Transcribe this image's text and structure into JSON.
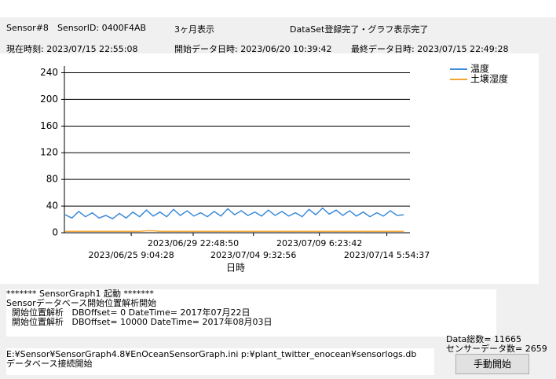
{
  "header": {
    "row1": [
      "Sensor#8",
      "SensorID: 0400F4AB",
      "3ヶ月表示",
      "DataSet登録完了・グラフ表示完了"
    ],
    "row2": [
      "現在時刻: 2023/07/15 22:55:08",
      "開始データ日時: 2023/06/20 10:39:42",
      "最終データ日時: 2023/07/15 22:49:28"
    ]
  },
  "chart_data": {
    "type": "line",
    "x_label": "日時",
    "grid": true,
    "legend": "top-right",
    "xlim": [
      "2023/06/20 10:39:42",
      "2023/07/15 22:49:28"
    ],
    "xticks": [
      "2023/06/25 9:04:28",
      "2023/06/29 22:48:50",
      "2023/07/04 9:32:56",
      "2023/07/09 6:23:42",
      "2023/07/14 5:54:37"
    ],
    "ylim": [
      0,
      250
    ],
    "yticks": [
      0,
      40,
      80,
      120,
      160,
      200,
      240
    ],
    "x": [
      "2023/06/20 12:00:00",
      "2023/06/21 0:00:00",
      "2023/06/21 12:00:00",
      "2023/06/22 0:00:00",
      "2023/06/22 12:00:00",
      "2023/06/23 0:00:00",
      "2023/06/23 12:00:00",
      "2023/06/24 0:00:00",
      "2023/06/24 12:00:00",
      "2023/06/25 0:00:00",
      "2023/06/25 12:00:00",
      "2023/06/26 0:00:00",
      "2023/06/26 12:00:00",
      "2023/06/27 0:00:00",
      "2023/06/27 12:00:00",
      "2023/06/28 0:00:00",
      "2023/06/28 12:00:00",
      "2023/06/29 0:00:00",
      "2023/06/29 12:00:00",
      "2023/06/30 0:00:00",
      "2023/06/30 12:00:00",
      "2023/07/01 0:00:00",
      "2023/07/01 12:00:00",
      "2023/07/02 0:00:00",
      "2023/07/02 12:00:00",
      "2023/07/03 0:00:00",
      "2023/07/03 12:00:00",
      "2023/07/04 0:00:00",
      "2023/07/04 12:00:00",
      "2023/07/05 0:00:00",
      "2023/07/05 12:00:00",
      "2023/07/06 0:00:00",
      "2023/07/06 12:00:00",
      "2023/07/07 0:00:00",
      "2023/07/07 12:00:00",
      "2023/07/08 0:00:00",
      "2023/07/08 12:00:00",
      "2023/07/09 0:00:00",
      "2023/07/09 12:00:00",
      "2023/07/10 0:00:00",
      "2023/07/10 12:00:00",
      "2023/07/11 0:00:00",
      "2023/07/11 12:00:00",
      "2023/07/12 0:00:00",
      "2023/07/12 12:00:00",
      "2023/07/13 0:00:00",
      "2023/07/13 12:00:00",
      "2023/07/14 0:00:00",
      "2023/07/14 12:00:00",
      "2023/07/15 0:00:00",
      "2023/07/15 12:00:00"
    ],
    "series": [
      {
        "name": "温度",
        "color": "#3d8bd9",
        "values": [
          27,
          22,
          32,
          24,
          30,
          22,
          26,
          21,
          29,
          22,
          31,
          24,
          34,
          25,
          31,
          24,
          35,
          26,
          33,
          25,
          30,
          24,
          32,
          25,
          36,
          27,
          33,
          26,
          31,
          25,
          34,
          26,
          32,
          25,
          30,
          24,
          35,
          27,
          37,
          28,
          34,
          26,
          33,
          25,
          31,
          24,
          30,
          25,
          33,
          26,
          27
        ]
      },
      {
        "name": "土壌湿度",
        "color": "#f2a531",
        "values": [
          2,
          2,
          2,
          2,
          2,
          2,
          2,
          2,
          2,
          2,
          2,
          2,
          3,
          3,
          2,
          2,
          2,
          2,
          2,
          2,
          2,
          2,
          2,
          2,
          2,
          2,
          2,
          2,
          2,
          2,
          2,
          2,
          2,
          2,
          2,
          2,
          2,
          2,
          2,
          2,
          2,
          2,
          2,
          2,
          2,
          2,
          2,
          2,
          2,
          2,
          2
        ]
      }
    ]
  },
  "log": [
    "******* SensorGraph1 起動 *******",
    "Sensorデータベース開始位置解析開始",
    "  開始位置解析   DBOffset= 0 DateTime= 2017年07月22日",
    "  開始位置解析   DBOffset= 10000 DateTime= 2017年08月03日"
  ],
  "log2": [
    "E:¥Sensor¥SensorGraph4.8¥EnOceanSensorGraph.ini p:¥plant_twitter_enocean¥sensorlogs.db",
    "データベース接続開始"
  ],
  "stats": [
    "Data総数= 11665",
    "センサーデータ数= 2659"
  ],
  "button": "手動開始"
}
